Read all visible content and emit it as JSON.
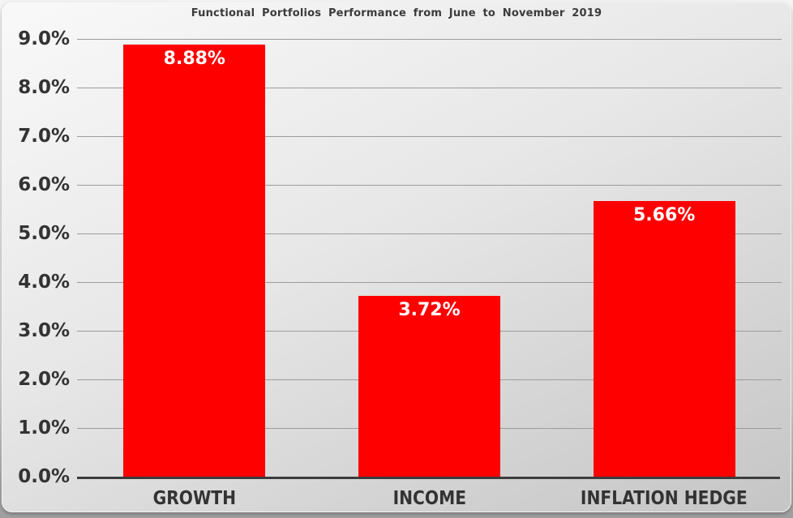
{
  "title": "Functional Portfolios Performance from June to November 2019",
  "chart_data": {
    "type": "bar",
    "title": "Functional Portfolios Performance from June to November 2019",
    "categories": [
      "GROWTH",
      "INCOME",
      "INFLATION HEDGE"
    ],
    "values": [
      8.88,
      3.72,
      5.66
    ],
    "value_labels": [
      "8.88%",
      "3.72%",
      "5.66%"
    ],
    "xlabel": "",
    "ylabel": "",
    "ylim": [
      0,
      9
    ],
    "ytick_step": 1,
    "ytick_labels": [
      "0.0%",
      "1.0%",
      "2.0%",
      "3.0%",
      "4.0%",
      "5.0%",
      "6.0%",
      "7.0%",
      "8.0%",
      "9.0%"
    ],
    "grid": true,
    "legend": "none",
    "bar_color": "#ff0000"
  },
  "colors": {
    "bar": "#ff0000",
    "grid_line": "#9c9c9c",
    "axis_line": "#3c3c3c",
    "title_text": "#3b3b3b",
    "tick_text": "#333333",
    "value_text": "#ffffff",
    "bg_top": "#f9f9f9",
    "bg_mid": "#e7e7e7",
    "bg_bottom": "#c5c5c5"
  }
}
